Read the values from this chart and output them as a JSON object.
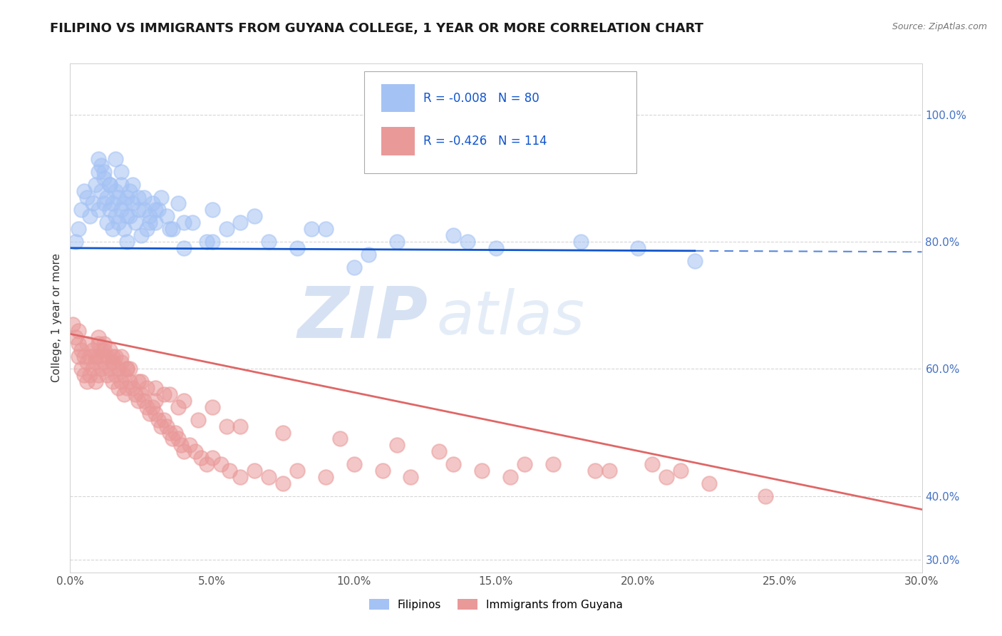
{
  "title": "FILIPINO VS IMMIGRANTS FROM GUYANA COLLEGE, 1 YEAR OR MORE CORRELATION CHART",
  "source": "Source: ZipAtlas.com",
  "ylabel": "College, 1 year or more",
  "xlim": [
    0.0,
    30.0
  ],
  "ylim": [
    28.0,
    108.0
  ],
  "xticks": [
    0.0,
    5.0,
    10.0,
    15.0,
    20.0,
    25.0,
    30.0
  ],
  "yticks_right": [
    30.0,
    40.0,
    60.0,
    80.0,
    100.0
  ],
  "blue_R": -0.008,
  "blue_N": 80,
  "pink_R": -0.426,
  "pink_N": 114,
  "blue_color": "#a4c2f4",
  "pink_color": "#ea9999",
  "blue_line_color": "#1155cc",
  "pink_line_color": "#e06666",
  "blue_line_solid_end": 22.0,
  "legend_label_blue": "Filipinos",
  "legend_label_pink": "Immigrants from Guyana",
  "watermark_zip": "ZIP",
  "watermark_atlas": "atlas",
  "background_color": "#ffffff",
  "title_fontsize": 13,
  "blue_intercept": 79.0,
  "blue_slope": -0.02,
  "pink_intercept": 65.5,
  "pink_slope": -0.92,
  "blue_x": [
    0.2,
    0.3,
    0.4,
    0.5,
    0.6,
    0.7,
    0.8,
    0.9,
    1.0,
    1.0,
    1.1,
    1.1,
    1.2,
    1.2,
    1.3,
    1.3,
    1.4,
    1.4,
    1.5,
    1.5,
    1.6,
    1.6,
    1.7,
    1.7,
    1.8,
    1.8,
    1.9,
    1.9,
    2.0,
    2.0,
    2.1,
    2.1,
    2.2,
    2.3,
    2.4,
    2.5,
    2.6,
    2.7,
    2.8,
    2.9,
    3.0,
    3.1,
    3.2,
    3.4,
    3.6,
    3.8,
    4.0,
    4.3,
    4.8,
    5.0,
    5.5,
    6.0,
    7.0,
    8.0,
    9.0,
    10.0,
    11.5,
    13.5,
    15.0,
    18.0,
    1.0,
    1.2,
    1.4,
    1.6,
    1.8,
    2.0,
    2.2,
    2.4,
    2.6,
    2.8,
    3.0,
    3.5,
    4.0,
    5.0,
    6.5,
    8.5,
    10.5,
    14.0,
    20.0,
    22.0
  ],
  "blue_y": [
    80.0,
    82.0,
    85.0,
    88.0,
    87.0,
    84.0,
    86.0,
    89.0,
    91.0,
    85.0,
    88.0,
    92.0,
    86.0,
    90.0,
    87.0,
    83.0,
    85.0,
    89.0,
    82.0,
    86.0,
    84.0,
    88.0,
    83.0,
    87.0,
    85.0,
    89.0,
    82.0,
    86.0,
    84.0,
    80.0,
    88.0,
    84.0,
    86.0,
    83.0,
    87.0,
    81.0,
    85.0,
    82.0,
    84.0,
    86.0,
    83.0,
    85.0,
    87.0,
    84.0,
    82.0,
    86.0,
    79.0,
    83.0,
    80.0,
    85.0,
    82.0,
    83.0,
    80.0,
    79.0,
    82.0,
    76.0,
    80.0,
    81.0,
    79.0,
    80.0,
    93.0,
    91.0,
    89.0,
    93.0,
    91.0,
    87.0,
    89.0,
    85.0,
    87.0,
    83.0,
    85.0,
    82.0,
    83.0,
    80.0,
    84.0,
    82.0,
    78.0,
    80.0,
    79.0,
    77.0
  ],
  "pink_x": [
    0.1,
    0.2,
    0.3,
    0.3,
    0.4,
    0.4,
    0.5,
    0.5,
    0.6,
    0.6,
    0.7,
    0.7,
    0.8,
    0.8,
    0.9,
    0.9,
    1.0,
    1.0,
    1.0,
    1.1,
    1.1,
    1.2,
    1.2,
    1.3,
    1.3,
    1.4,
    1.4,
    1.5,
    1.5,
    1.6,
    1.6,
    1.7,
    1.7,
    1.8,
    1.8,
    1.9,
    1.9,
    2.0,
    2.0,
    2.1,
    2.2,
    2.3,
    2.4,
    2.5,
    2.6,
    2.7,
    2.8,
    2.9,
    3.0,
    3.1,
    3.2,
    3.3,
    3.4,
    3.5,
    3.6,
    3.7,
    3.8,
    3.9,
    4.0,
    4.2,
    4.4,
    4.6,
    4.8,
    5.0,
    5.3,
    5.6,
    6.0,
    6.5,
    7.0,
    7.5,
    8.0,
    9.0,
    10.0,
    11.0,
    12.0,
    13.5,
    14.5,
    15.5,
    17.0,
    19.0,
    20.5,
    21.5,
    22.5,
    1.0,
    1.5,
    2.0,
    2.5,
    3.0,
    3.5,
    4.0,
    5.0,
    6.0,
    7.5,
    9.5,
    11.5,
    13.0,
    16.0,
    18.5,
    21.0,
    24.5,
    0.3,
    0.6,
    0.9,
    1.2,
    1.5,
    1.8,
    2.1,
    2.4,
    2.7,
    3.0,
    3.3,
    3.8,
    4.5,
    5.5
  ],
  "pink_y": [
    67.0,
    65.0,
    64.0,
    62.0,
    63.0,
    60.0,
    62.0,
    59.0,
    61.0,
    58.0,
    62.0,
    59.0,
    63.0,
    60.0,
    61.0,
    58.0,
    65.0,
    62.0,
    59.0,
    63.0,
    60.0,
    64.0,
    61.0,
    62.0,
    59.0,
    63.0,
    60.0,
    61.0,
    58.0,
    62.0,
    59.0,
    60.0,
    57.0,
    61.0,
    58.0,
    59.0,
    56.0,
    60.0,
    57.0,
    58.0,
    57.0,
    56.0,
    55.0,
    56.0,
    55.0,
    54.0,
    53.0,
    54.0,
    53.0,
    52.0,
    51.0,
    52.0,
    51.0,
    50.0,
    49.0,
    50.0,
    49.0,
    48.0,
    47.0,
    48.0,
    47.0,
    46.0,
    45.0,
    46.0,
    45.0,
    44.0,
    43.0,
    44.0,
    43.0,
    42.0,
    44.0,
    43.0,
    45.0,
    44.0,
    43.0,
    45.0,
    44.0,
    43.0,
    45.0,
    44.0,
    45.0,
    44.0,
    42.0,
    64.0,
    62.0,
    60.0,
    58.0,
    57.0,
    56.0,
    55.0,
    54.0,
    51.0,
    50.0,
    49.0,
    48.0,
    47.0,
    45.0,
    44.0,
    43.0,
    40.0,
    66.0,
    64.0,
    62.0,
    63.0,
    61.0,
    62.0,
    60.0,
    58.0,
    57.0,
    55.0,
    56.0,
    54.0,
    52.0,
    51.0
  ]
}
